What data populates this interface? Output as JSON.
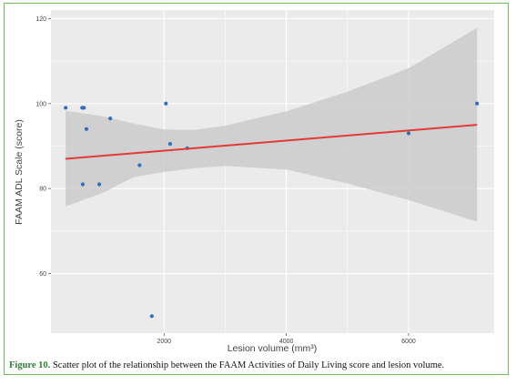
{
  "caption": {
    "label": "Figure 10.",
    "text": " Scatter plot of the relationship between the FAAM Activities of Daily Living score and lesion volume."
  },
  "chart_data": {
    "type": "scatter",
    "xlabel": "Lesion volume (mm³)",
    "ylabel": "FAAM ADL Scale (score)",
    "xlim": [
      150,
      7400
    ],
    "ylim": [
      46,
      122
    ],
    "xticks": [
      2000,
      4000,
      6000
    ],
    "yticks": [
      60,
      80,
      100,
      120
    ],
    "grid": true,
    "points": [
      {
        "x": 390,
        "y": 99
      },
      {
        "x": 660,
        "y": 99
      },
      {
        "x": 690,
        "y": 99
      },
      {
        "x": 670,
        "y": 81
      },
      {
        "x": 730,
        "y": 94
      },
      {
        "x": 940,
        "y": 81
      },
      {
        "x": 1120,
        "y": 96.5
      },
      {
        "x": 1600,
        "y": 85.5
      },
      {
        "x": 1800,
        "y": 50
      },
      {
        "x": 2030,
        "y": 100
      },
      {
        "x": 2100,
        "y": 90.5
      },
      {
        "x": 2380,
        "y": 89.5
      },
      {
        "x": 6000,
        "y": 93
      },
      {
        "x": 7120,
        "y": 100
      }
    ],
    "fit_line": {
      "x": [
        390,
        7120
      ],
      "y": [
        87,
        95
      ]
    },
    "confidence_band": {
      "x": [
        390,
        1000,
        1500,
        2000,
        2500,
        3000,
        4000,
        5000,
        6000,
        7120
      ],
      "upper": [
        98.3,
        97.0,
        95.3,
        93.9,
        93.8,
        94.8,
        98.2,
        102.8,
        108.3,
        117.8
      ],
      "lower": [
        75.8,
        79.0,
        82.7,
        83.9,
        84.8,
        85.3,
        84.5,
        81.2,
        77.3,
        72.2
      ]
    },
    "colors": {
      "panel": "#ebebeb",
      "band": "#cbcbcb",
      "grid": "#ffffff",
      "points": "#2e6fc0",
      "fit": "#e53935"
    }
  }
}
